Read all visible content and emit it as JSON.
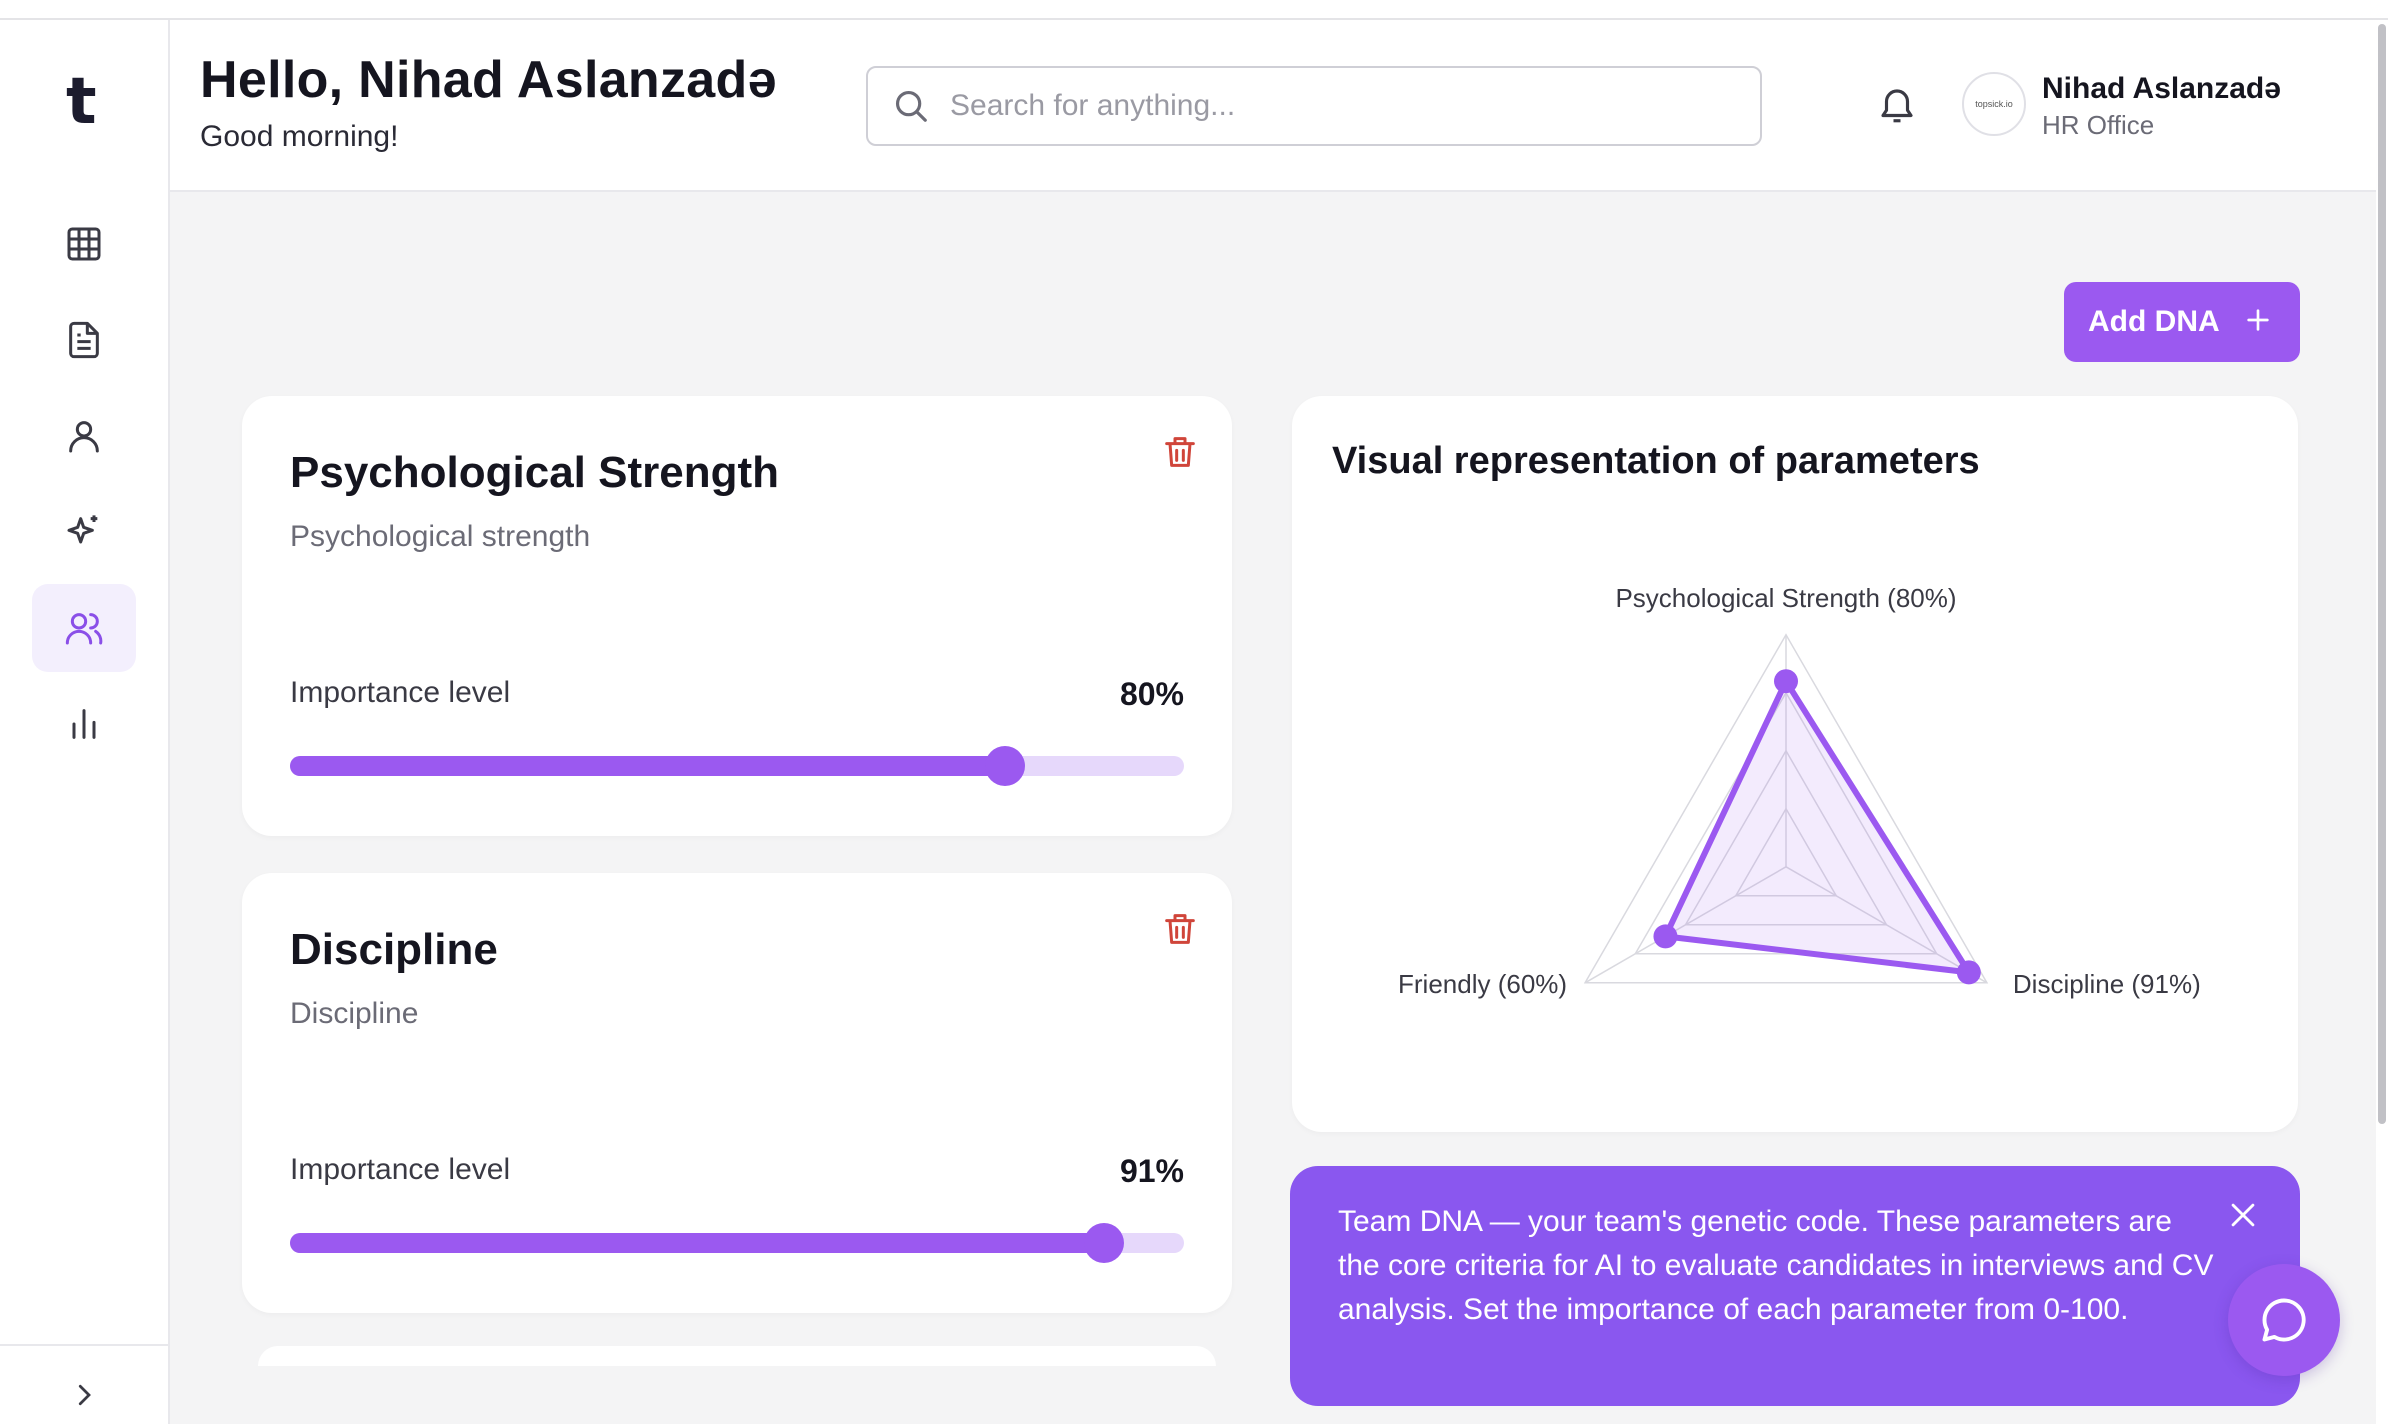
{
  "app": {
    "logo_letter": "t"
  },
  "sidebar": {
    "items": [
      {
        "name": "dashboard",
        "icon": "grid-icon"
      },
      {
        "name": "documents",
        "icon": "document-icon"
      },
      {
        "name": "candidates",
        "icon": "user-icon"
      },
      {
        "name": "ai",
        "icon": "sparkle-icon"
      },
      {
        "name": "team",
        "icon": "users-icon",
        "active": true
      },
      {
        "name": "analytics",
        "icon": "bar-chart-icon"
      }
    ],
    "expand_icon": "chevron-right-icon"
  },
  "header": {
    "greeting_title": "Hello, Nihad Aslanzadə",
    "greeting_sub": "Good morning!",
    "search_placeholder": "Search for anything...",
    "user_name": "Nihad Aslanzadə",
    "user_role": "HR Office",
    "avatar_text": "topsick.io"
  },
  "toolbar": {
    "add_label": "Add DNA"
  },
  "dna_items": [
    {
      "title": "Psychological Strength",
      "description": "Psychological strength",
      "importance_label": "Importance level",
      "importance_text": "80%",
      "importance": 80
    },
    {
      "title": "Discipline",
      "description": "Discipline",
      "importance_label": "Importance level",
      "importance_text": "91%",
      "importance": 91
    }
  ],
  "chart_data": {
    "type": "radar",
    "title": "Visual representation of parameters",
    "axes": [
      "Psychological Strength",
      "Discipline",
      "Friendly"
    ],
    "values": [
      80,
      91,
      60
    ],
    "labels": [
      "Psychological Strength (80%)",
      "Discipline (91%)",
      "Friendly (60%)"
    ],
    "range": [
      0,
      100
    ],
    "grid_levels": 4,
    "colors": {
      "series": "#9b59f0",
      "grid": "#d9d9df"
    }
  },
  "info": {
    "text": "Team DNA — your team's genetic code. These parameters are the core criteria for AI to evaluate candidates in interviews and CV analysis. Set the importance of each parameter from 0-100."
  },
  "theme": {
    "accent": "#9b59f0",
    "info_bg": "#8a57ef"
  }
}
